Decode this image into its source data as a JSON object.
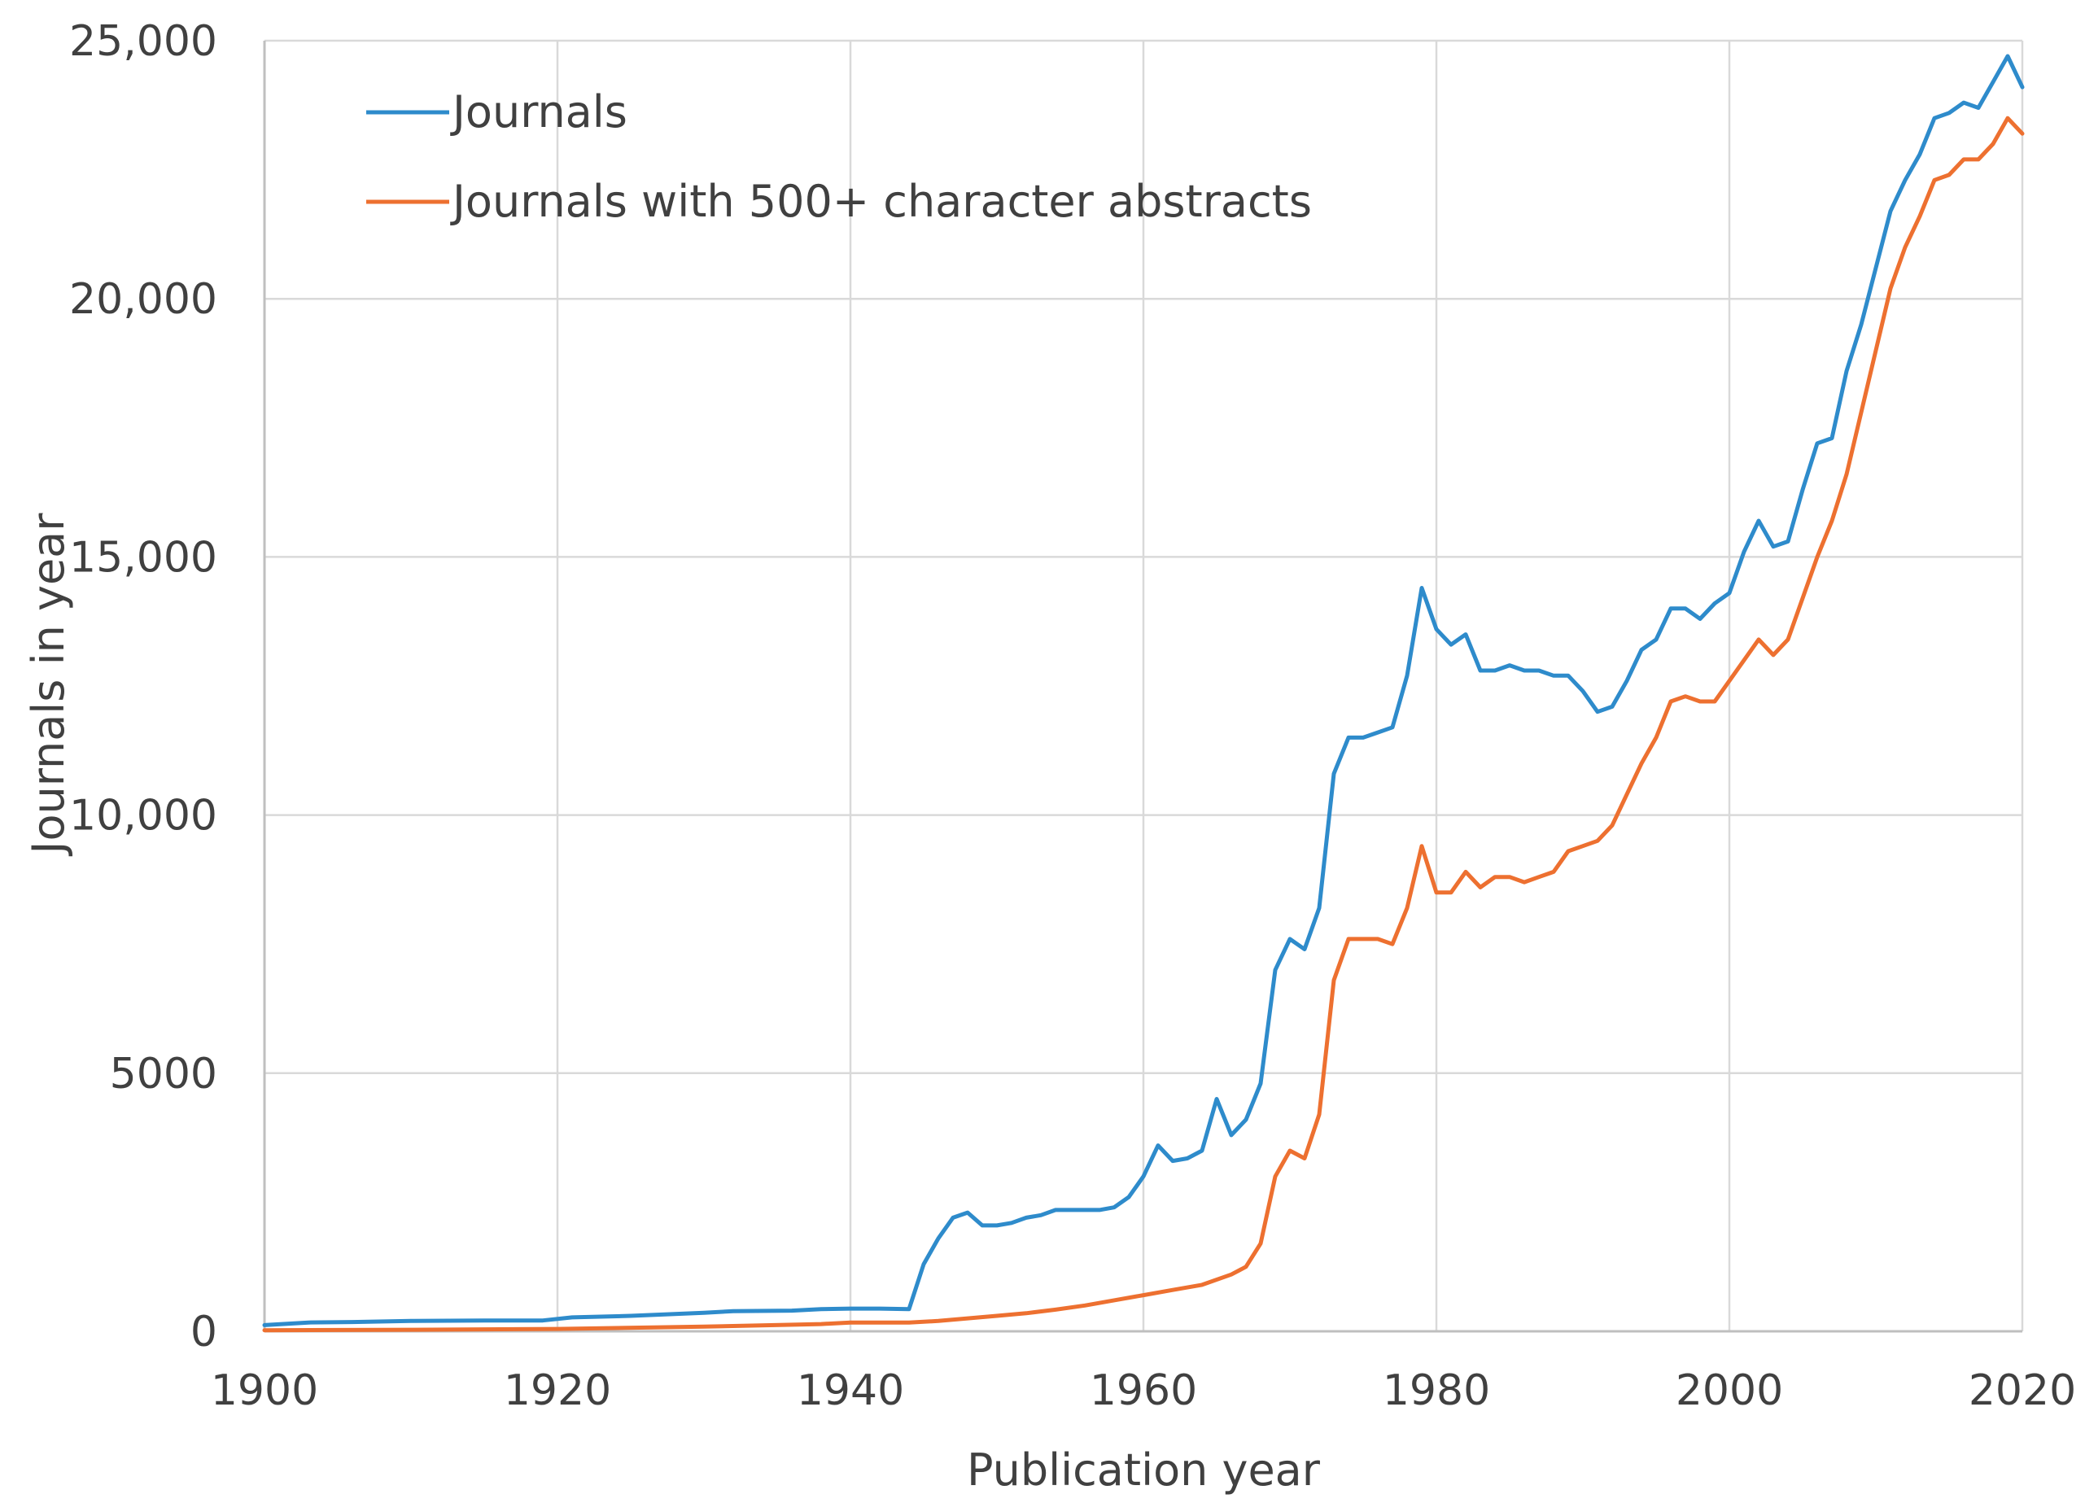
{
  "chart_data": {
    "type": "line",
    "title": "",
    "xlabel": "Publication year",
    "ylabel": "Journals in year",
    "xlim": [
      1900,
      2020
    ],
    "ylim": [
      0,
      25000
    ],
    "x_ticks": [
      1900,
      1920,
      1940,
      1960,
      1980,
      2000,
      2020
    ],
    "x_tick_labels": [
      "1900",
      "1920",
      "1940",
      "1960",
      "1980",
      "2000",
      "2020"
    ],
    "y_ticks": [
      0,
      5000,
      10000,
      15000,
      20000,
      25000
    ],
    "y_tick_labels": [
      "0",
      "5000",
      "10,000",
      "15,000",
      "20,000",
      "25,000"
    ],
    "grid": true,
    "legend_position": "top-left",
    "series": [
      {
        "name": "Journals",
        "color": "#2e8bcb",
        "x": [
          1900,
          1903,
          1906,
          1910,
          1915,
          1919,
          1921,
          1925,
          1930,
          1932,
          1936,
          1938,
          1940,
          1942,
          1944,
          1945,
          1946,
          1947,
          1948,
          1949,
          1950,
          1951,
          1952,
          1953,
          1954,
          1955,
          1956,
          1957,
          1958,
          1959,
          1960,
          1961,
          1962,
          1963,
          1964,
          1965,
          1966,
          1967,
          1968,
          1969,
          1970,
          1971,
          1972,
          1973,
          1974,
          1975,
          1976,
          1977,
          1978,
          1979,
          1980,
          1981,
          1982,
          1983,
          1984,
          1985,
          1986,
          1987,
          1988,
          1989,
          1990,
          1991,
          1992,
          1993,
          1994,
          1995,
          1996,
          1997,
          1998,
          1999,
          2000,
          2001,
          2002,
          2003,
          2004,
          2005,
          2006,
          2007,
          2008,
          2009,
          2010,
          2011,
          2012,
          2013,
          2014,
          2015,
          2016,
          2017,
          2018,
          2019,
          2020
        ],
        "y": [
          120,
          170,
          180,
          200,
          210,
          210,
          270,
          300,
          360,
          390,
          400,
          430,
          440,
          440,
          430,
          1300,
          1800,
          2200,
          2300,
          2050,
          2050,
          2100,
          2200,
          2250,
          2350,
          2350,
          2350,
          2350,
          2400,
          2600,
          3000,
          3600,
          3300,
          3350,
          3500,
          4500,
          3800,
          4100,
          4800,
          7000,
          7600,
          7400,
          8200,
          10800,
          11500,
          11500,
          11600,
          11700,
          12700,
          14400,
          13600,
          13300,
          13500,
          12800,
          12800,
          12900,
          12800,
          12800,
          12700,
          12700,
          12400,
          12000,
          12100,
          12600,
          13200,
          13400,
          14000,
          14000,
          13800,
          14100,
          14300,
          15100,
          15700,
          15200,
          15300,
          16300,
          17200,
          17300,
          18600,
          19500,
          20600,
          21700,
          22300,
          22800,
          23500,
          23600,
          23800,
          23700,
          24200,
          24700,
          24100
        ]
      },
      {
        "name": "Journals with 500+ character abstracts",
        "color": "#ed7030",
        "x": [
          1900,
          1905,
          1910,
          1920,
          1930,
          1938,
          1940,
          1944,
          1946,
          1948,
          1950,
          1952,
          1954,
          1956,
          1958,
          1960,
          1962,
          1964,
          1966,
          1967,
          1968,
          1969,
          1970,
          1971,
          1972,
          1973,
          1974,
          1975,
          1976,
          1977,
          1978,
          1979,
          1980,
          1981,
          1982,
          1983,
          1984,
          1985,
          1986,
          1987,
          1988,
          1989,
          1990,
          1991,
          1992,
          1993,
          1994,
          1995,
          1996,
          1997,
          1998,
          1999,
          2000,
          2001,
          2002,
          2003,
          2004,
          2005,
          2006,
          2007,
          2008,
          2009,
          2010,
          2011,
          2012,
          2013,
          2014,
          2015,
          2016,
          2017,
          2018,
          2019,
          2020
        ],
        "y": [
          20,
          25,
          30,
          45,
          90,
          140,
          170,
          170,
          200,
          250,
          300,
          350,
          420,
          500,
          600,
          700,
          800,
          900,
          1100,
          1250,
          1700,
          3000,
          3500,
          3350,
          4200,
          6800,
          7600,
          7600,
          7600,
          7500,
          8200,
          9400,
          8500,
          8500,
          8900,
          8600,
          8800,
          8800,
          8700,
          8800,
          8900,
          9300,
          9400,
          9500,
          9800,
          10400,
          11000,
          11500,
          12200,
          12300,
          12200,
          12200,
          12600,
          13000,
          13400,
          13100,
          13400,
          14200,
          15000,
          15700,
          16600,
          17800,
          19000,
          20200,
          21000,
          21600,
          22300,
          22400,
          22700,
          22700,
          23000,
          23500,
          23200
        ]
      }
    ]
  }
}
